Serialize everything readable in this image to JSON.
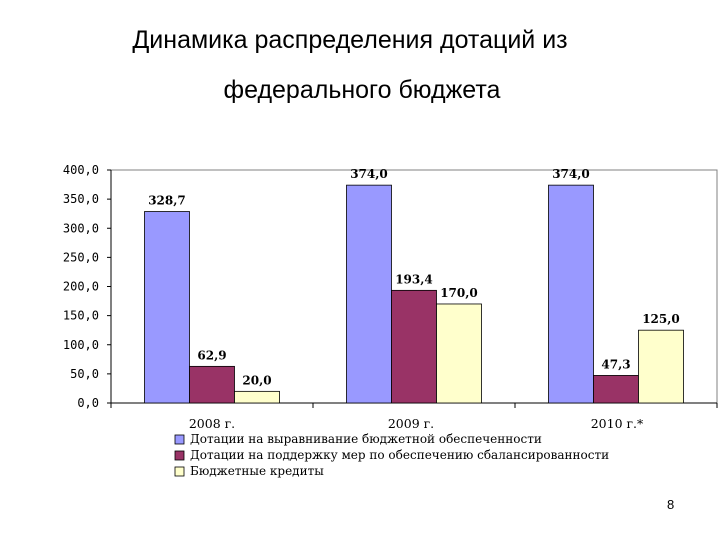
{
  "slide": {
    "title_line1": "Динамика распределения дотаций из",
    "title_line2": "федерального бюджета",
    "page_number": "8"
  },
  "chart_data": {
    "type": "bar",
    "categories": [
      "2008 г.",
      "2009 г.",
      "2010 г.*"
    ],
    "series": [
      {
        "name": "Дотации на выравнивание бюджетной обеспеченности",
        "values": [
          328.7,
          374.0,
          374.0
        ],
        "labels": [
          "328,7",
          "374,0",
          "374,0"
        ],
        "color": "#9999ff"
      },
      {
        "name": "Дотации на поддержку мер по обеспечению сбалансированности",
        "values": [
          62.9,
          193.4,
          47.3
        ],
        "labels": [
          "62,9",
          "193,4",
          "47,3"
        ],
        "color": "#993366"
      },
      {
        "name": "Бюджетные кредиты",
        "values": [
          20.0,
          170.0,
          125.0
        ],
        "labels": [
          "20,0",
          "170,0",
          "125,0"
        ],
        "color": "#ffffcc"
      }
    ],
    "ylim": [
      0,
      400
    ],
    "yticks": [
      0,
      50,
      100,
      150,
      200,
      250,
      300,
      350,
      400
    ],
    "ytick_labels": [
      "0,0",
      "50,0",
      "100,0",
      "150,0",
      "200,0",
      "250,0",
      "300,0",
      "350,0",
      "400,0"
    ],
    "grid": false,
    "legend_position": "bottom-left"
  }
}
